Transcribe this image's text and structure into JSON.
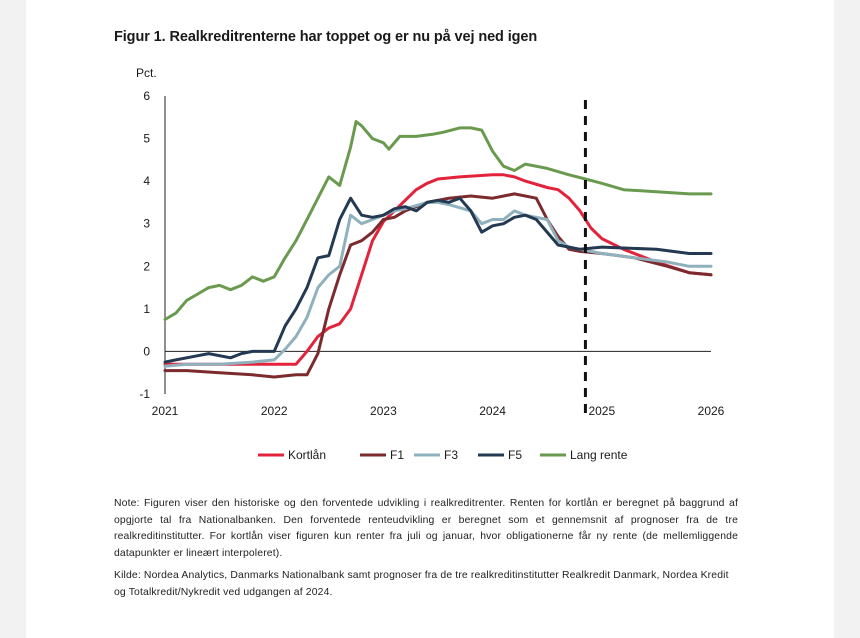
{
  "figure": {
    "title": "Figur 1. Realkreditrenterne har toppet og er nu på vej ned igen",
    "note": "Note: Figuren viser den historiske og den forventede udvikling i realkreditrenter. Renten for kortlån er beregnet på baggrund af opgjorte tal fra Nationalbanken. Den forventede renteudvikling er beregnet som et gennemsnit af prognoser fra de tre realkreditinstitutter. For kortlån viser figuren kun renter fra juli og januar, hvor obligationerne får ny rente (de mellemliggende datapunkter er lineært interpoleret).",
    "source": "Kilde: Nordea Analytics, Danmarks Nationalbank samt prognoser fra de tre realkreditinstitutter Realkredit Danmark, Nordea Kredit og Totalkredit/Nykredit ved udgangen af 2024."
  },
  "chart_data": {
    "type": "line",
    "ylabel": "Pct.",
    "ylim": [
      -1,
      6
    ],
    "yticks": [
      "-1",
      "0",
      "1",
      "2",
      "3",
      "4",
      "5",
      "6"
    ],
    "xlim": [
      2021,
      2026
    ],
    "xticks": [
      "2021",
      "2022",
      "2023",
      "2024",
      "2025",
      "2026"
    ],
    "forecast_start": 2024.85,
    "grid": false,
    "legend_position": "bottom",
    "series": [
      {
        "name": "Kortlån",
        "color": "#e3233c",
        "points": [
          [
            2021,
            -0.3
          ],
          [
            2021.5,
            -0.3
          ],
          [
            2022,
            -0.3
          ],
          [
            2022.1,
            -0.3
          ],
          [
            2022.2,
            -0.3
          ],
          [
            2022.3,
            0.0
          ],
          [
            2022.4,
            0.35
          ],
          [
            2022.5,
            0.55
          ],
          [
            2022.6,
            0.65
          ],
          [
            2022.7,
            1.0
          ],
          [
            2022.8,
            1.8
          ],
          [
            2022.9,
            2.6
          ],
          [
            2023,
            3.05
          ],
          [
            2023.1,
            3.3
          ],
          [
            2023.2,
            3.55
          ],
          [
            2023.3,
            3.8
          ],
          [
            2023.4,
            3.95
          ],
          [
            2023.5,
            4.05
          ],
          [
            2023.7,
            4.1
          ],
          [
            2024,
            4.15
          ],
          [
            2024.1,
            4.15
          ],
          [
            2024.2,
            4.1
          ],
          [
            2024.3,
            4.0
          ],
          [
            2024.5,
            3.85
          ],
          [
            2024.6,
            3.8
          ],
          [
            2024.7,
            3.6
          ],
          [
            2024.8,
            3.3
          ],
          [
            2024.9,
            2.9
          ],
          [
            2025,
            2.65
          ],
          [
            2025.2,
            2.4
          ],
          [
            2025.5,
            2.1
          ],
          [
            2025.8,
            1.85
          ],
          [
            2026,
            1.8
          ]
        ]
      },
      {
        "name": "F1",
        "color": "#7b2b2e",
        "points": [
          [
            2021,
            -0.45
          ],
          [
            2021.2,
            -0.45
          ],
          [
            2021.5,
            -0.5
          ],
          [
            2021.8,
            -0.55
          ],
          [
            2022,
            -0.6
          ],
          [
            2022.2,
            -0.55
          ],
          [
            2022.3,
            -0.55
          ],
          [
            2022.4,
            -0.05
          ],
          [
            2022.5,
            1.0
          ],
          [
            2022.6,
            1.8
          ],
          [
            2022.7,
            2.5
          ],
          [
            2022.8,
            2.6
          ],
          [
            2022.9,
            2.8
          ],
          [
            2023,
            3.1
          ],
          [
            2023.1,
            3.15
          ],
          [
            2023.2,
            3.3
          ],
          [
            2023.3,
            3.4
          ],
          [
            2023.4,
            3.5
          ],
          [
            2023.5,
            3.55
          ],
          [
            2023.6,
            3.6
          ],
          [
            2023.8,
            3.65
          ],
          [
            2024,
            3.6
          ],
          [
            2024.2,
            3.7
          ],
          [
            2024.4,
            3.6
          ],
          [
            2024.5,
            3.1
          ],
          [
            2024.6,
            2.7
          ],
          [
            2024.7,
            2.4
          ],
          [
            2024.8,
            2.35
          ],
          [
            2025,
            2.3
          ],
          [
            2025.3,
            2.2
          ],
          [
            2025.6,
            2.0
          ],
          [
            2025.8,
            1.85
          ],
          [
            2026,
            1.8
          ]
        ]
      },
      {
        "name": "F3",
        "color": "#8fb1bd",
        "points": [
          [
            2021,
            -0.35
          ],
          [
            2021.2,
            -0.3
          ],
          [
            2021.5,
            -0.3
          ],
          [
            2021.8,
            -0.25
          ],
          [
            2022,
            -0.2
          ],
          [
            2022.1,
            0.05
          ],
          [
            2022.2,
            0.35
          ],
          [
            2022.3,
            0.8
          ],
          [
            2022.4,
            1.5
          ],
          [
            2022.5,
            1.8
          ],
          [
            2022.6,
            2.0
          ],
          [
            2022.7,
            3.2
          ],
          [
            2022.8,
            3.0
          ],
          [
            2022.9,
            3.1
          ],
          [
            2023,
            3.2
          ],
          [
            2023.1,
            3.3
          ],
          [
            2023.2,
            3.35
          ],
          [
            2023.4,
            3.5
          ],
          [
            2023.5,
            3.5
          ],
          [
            2023.6,
            3.45
          ],
          [
            2023.8,
            3.3
          ],
          [
            2023.9,
            3.0
          ],
          [
            2024,
            3.1
          ],
          [
            2024.1,
            3.1
          ],
          [
            2024.2,
            3.3
          ],
          [
            2024.3,
            3.2
          ],
          [
            2024.5,
            3.1
          ],
          [
            2024.6,
            2.6
          ],
          [
            2024.7,
            2.45
          ],
          [
            2024.9,
            2.35
          ],
          [
            2025,
            2.3
          ],
          [
            2025.3,
            2.2
          ],
          [
            2025.6,
            2.1
          ],
          [
            2025.8,
            2.0
          ],
          [
            2026,
            2.0
          ]
        ]
      },
      {
        "name": "F5",
        "color": "#243a52",
        "points": [
          [
            2021,
            -0.25
          ],
          [
            2021.1,
            -0.2
          ],
          [
            2021.3,
            -0.1
          ],
          [
            2021.4,
            -0.05
          ],
          [
            2021.6,
            -0.15
          ],
          [
            2021.7,
            -0.05
          ],
          [
            2021.8,
            0.0
          ],
          [
            2022,
            0.0
          ],
          [
            2022.05,
            0.3
          ],
          [
            2022.1,
            0.6
          ],
          [
            2022.2,
            1.0
          ],
          [
            2022.3,
            1.5
          ],
          [
            2022.4,
            2.2
          ],
          [
            2022.5,
            2.25
          ],
          [
            2022.6,
            3.1
          ],
          [
            2022.7,
            3.6
          ],
          [
            2022.8,
            3.2
          ],
          [
            2022.9,
            3.15
          ],
          [
            2023,
            3.2
          ],
          [
            2023.1,
            3.35
          ],
          [
            2023.2,
            3.4
          ],
          [
            2023.3,
            3.3
          ],
          [
            2023.4,
            3.5
          ],
          [
            2023.5,
            3.55
          ],
          [
            2023.6,
            3.5
          ],
          [
            2023.7,
            3.6
          ],
          [
            2023.8,
            3.3
          ],
          [
            2023.9,
            2.8
          ],
          [
            2024,
            2.95
          ],
          [
            2024.1,
            3.0
          ],
          [
            2024.2,
            3.15
          ],
          [
            2024.3,
            3.2
          ],
          [
            2024.4,
            3.1
          ],
          [
            2024.6,
            2.5
          ],
          [
            2024.8,
            2.4
          ],
          [
            2025,
            2.45
          ],
          [
            2025.5,
            2.4
          ],
          [
            2025.8,
            2.3
          ],
          [
            2026,
            2.3
          ]
        ]
      },
      {
        "name": "Lang rente",
        "color": "#6a9a4f",
        "points": [
          [
            2021,
            0.75
          ],
          [
            2021.1,
            0.9
          ],
          [
            2021.2,
            1.2
          ],
          [
            2021.3,
            1.35
          ],
          [
            2021.4,
            1.5
          ],
          [
            2021.5,
            1.55
          ],
          [
            2021.6,
            1.45
          ],
          [
            2021.7,
            1.55
          ],
          [
            2021.8,
            1.75
          ],
          [
            2021.9,
            1.65
          ],
          [
            2022,
            1.75
          ],
          [
            2022.1,
            2.2
          ],
          [
            2022.2,
            2.6
          ],
          [
            2022.3,
            3.1
          ],
          [
            2022.4,
            3.6
          ],
          [
            2022.5,
            4.1
          ],
          [
            2022.6,
            3.9
          ],
          [
            2022.7,
            4.8
          ],
          [
            2022.75,
            5.4
          ],
          [
            2022.8,
            5.3
          ],
          [
            2022.9,
            5.0
          ],
          [
            2023,
            4.9
          ],
          [
            2023.05,
            4.75
          ],
          [
            2023.15,
            5.05
          ],
          [
            2023.3,
            5.05
          ],
          [
            2023.45,
            5.1
          ],
          [
            2023.55,
            5.15
          ],
          [
            2023.7,
            5.25
          ],
          [
            2023.8,
            5.25
          ],
          [
            2023.9,
            5.2
          ],
          [
            2024,
            4.7
          ],
          [
            2024.1,
            4.35
          ],
          [
            2024.2,
            4.25
          ],
          [
            2024.3,
            4.4
          ],
          [
            2024.5,
            4.3
          ],
          [
            2024.7,
            4.15
          ],
          [
            2024.85,
            4.05
          ],
          [
            2025,
            3.95
          ],
          [
            2025.2,
            3.8
          ],
          [
            2025.5,
            3.75
          ],
          [
            2025.8,
            3.7
          ],
          [
            2026,
            3.7
          ]
        ]
      }
    ]
  }
}
